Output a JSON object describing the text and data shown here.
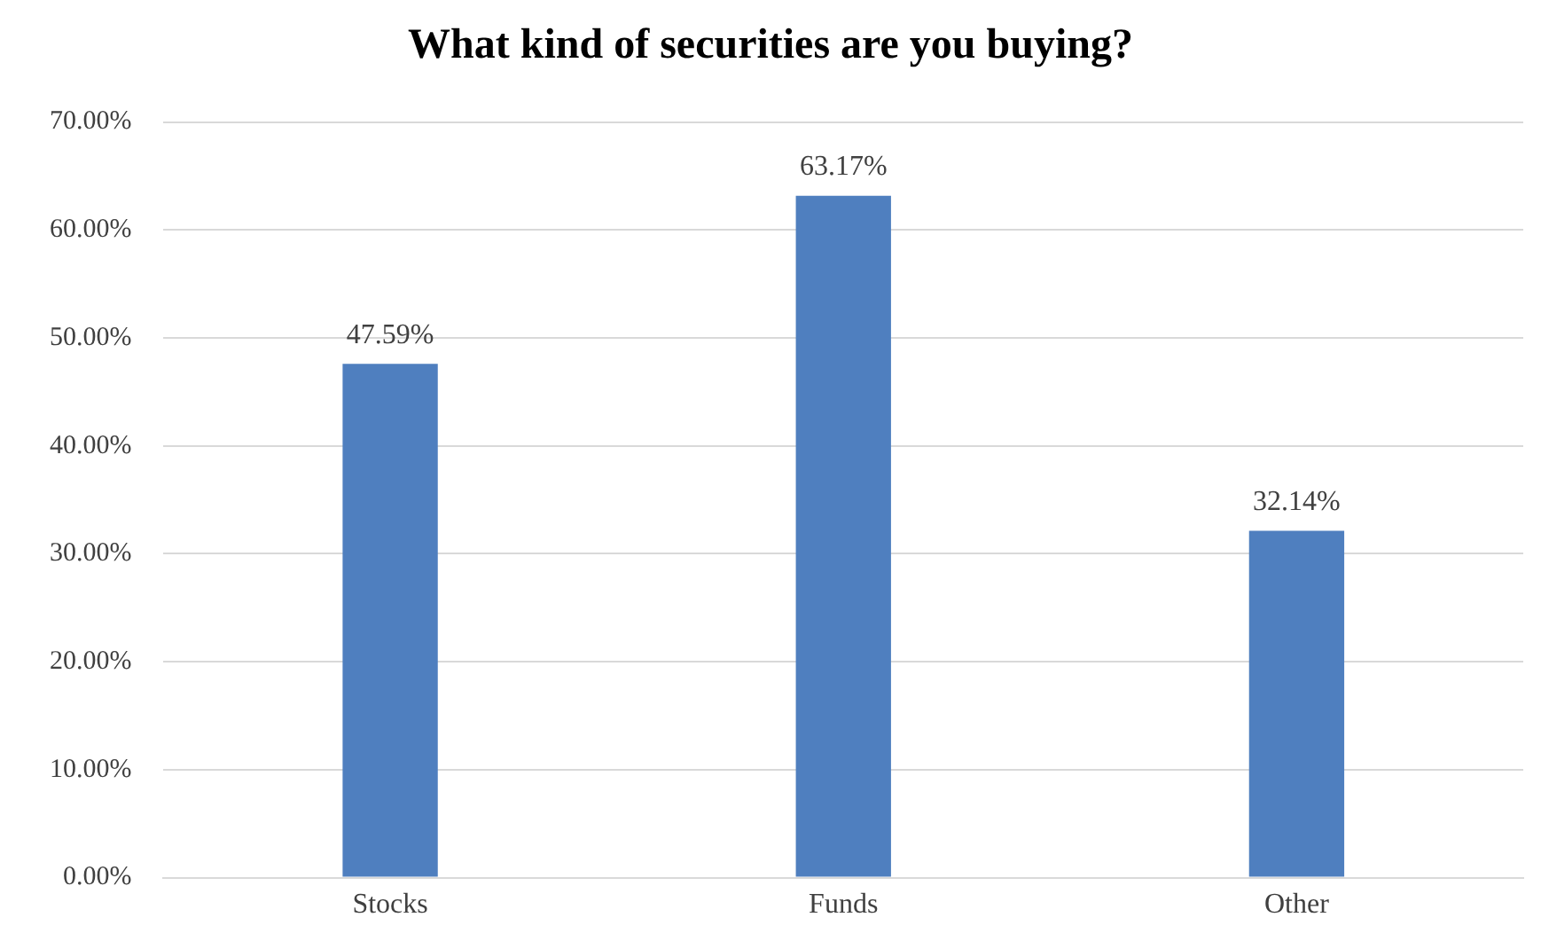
{
  "chart_data": {
    "type": "bar",
    "title": "What kind of securities are you buying?",
    "categories": [
      "Stocks",
      "Funds",
      "Other"
    ],
    "values": [
      47.59,
      63.17,
      32.14
    ],
    "value_labels": [
      "47.59%",
      "63.17%",
      "32.14%"
    ],
    "color": "#4f7fbf",
    "ylim": [
      0,
      70
    ],
    "yticks": [
      {
        "value": 0,
        "label": "0.00%"
      },
      {
        "value": 10,
        "label": "10.00%"
      },
      {
        "value": 20,
        "label": "20.00%"
      },
      {
        "value": 30,
        "label": "30.00%"
      },
      {
        "value": 40,
        "label": "40.00%"
      },
      {
        "value": 50,
        "label": "50.00%"
      },
      {
        "value": 60,
        "label": "60.00%"
      },
      {
        "value": 70,
        "label": "70.00%"
      }
    ],
    "grid": "y",
    "legend": false
  }
}
